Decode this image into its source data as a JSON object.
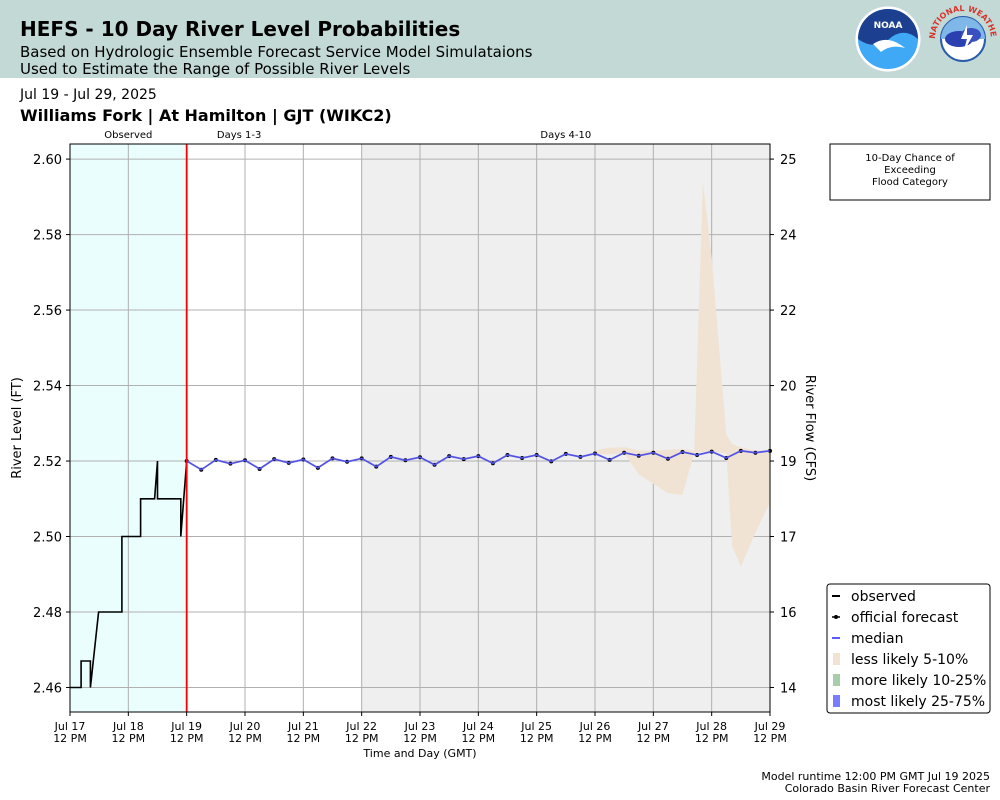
{
  "header": {
    "title": "HEFS - 10 Day River Level Probabilities",
    "subtitle1": "Based on Hydrologic Ensemble Forecast Service Model Simulataions",
    "subtitle2": "Used to Estimate the Range of Possible River Levels",
    "noaa_logo_text": "NOAA",
    "nws_logo_text": "NATIONAL WEATHER SERVICE"
  },
  "date_range": "Jul 19 - Jul 29, 2025",
  "station": "Williams Fork | At Hamilton | GJT (WIKC2)",
  "footer": {
    "runtime": "Model runtime 12:00 PM GMT Jul 19 2025",
    "center": "Colorado Basin River Forecast Center"
  },
  "colors": {
    "header_bg": "#c2d9d6",
    "observed_bg": "#ebfefe",
    "days4_10_bg": "#efefef",
    "observed_line": "#000000",
    "forecast_start_line": "#ff0000",
    "median": "#5a5aff",
    "less_likely": "#f1e3d3",
    "more_likely": "#a9cca9",
    "most_likely": "#7b7bff"
  },
  "chart_data": {
    "type": "line",
    "xlabel": "Time and Day (GMT)",
    "ylabel": "River Level (FT)",
    "y2label": "River Flow (CFS)",
    "xlim": [
      17.5,
      29.5
    ],
    "ylim": [
      2.4535,
      2.604
    ],
    "grid": true,
    "legend_position": "lower-right",
    "period_labels": [
      {
        "label": "Observed",
        "from": 17.5,
        "to": 19.5
      },
      {
        "label": "Days 1-3",
        "from": 19.5,
        "to": 22.5
      },
      {
        "label": "Days 4-10",
        "from": 22.5,
        "to": 29.5
      }
    ],
    "flood_box_text": [
      "10-Day Chance of",
      "Exceeding",
      "Flood Category"
    ],
    "x_ticks": [
      {
        "v": 17.5,
        "l1": "Jul 17",
        "l2": "12 PM"
      },
      {
        "v": 18.5,
        "l1": "Jul 18",
        "l2": "12 PM"
      },
      {
        "v": 19.5,
        "l1": "Jul 19",
        "l2": "12 PM"
      },
      {
        "v": 20.5,
        "l1": "Jul 20",
        "l2": "12 PM"
      },
      {
        "v": 21.5,
        "l1": "Jul 21",
        "l2": "12 PM"
      },
      {
        "v": 22.5,
        "l1": "Jul 22",
        "l2": "12 PM"
      },
      {
        "v": 23.5,
        "l1": "Jul 23",
        "l2": "12 PM"
      },
      {
        "v": 24.5,
        "l1": "Jul 24",
        "l2": "12 PM"
      },
      {
        "v": 25.5,
        "l1": "Jul 25",
        "l2": "12 PM"
      },
      {
        "v": 26.5,
        "l1": "Jul 26",
        "l2": "12 PM"
      },
      {
        "v": 27.5,
        "l1": "Jul 27",
        "l2": "12 PM"
      },
      {
        "v": 28.5,
        "l1": "Jul 28",
        "l2": "12 PM"
      },
      {
        "v": 29.5,
        "l1": "Jul 29",
        "l2": "12 PM"
      }
    ],
    "y_ticks": [
      {
        "v": 2.46,
        "l": "2.46"
      },
      {
        "v": 2.48,
        "l": "2.48"
      },
      {
        "v": 2.5,
        "l": "2.50"
      },
      {
        "v": 2.52,
        "l": "2.52"
      },
      {
        "v": 2.54,
        "l": "2.54"
      },
      {
        "v": 2.56,
        "l": "2.56"
      },
      {
        "v": 2.58,
        "l": "2.58"
      },
      {
        "v": 2.6,
        "l": "2.60"
      }
    ],
    "y2_ticks": [
      {
        "v": 2.46,
        "l": "14"
      },
      {
        "v": 2.48,
        "l": "16"
      },
      {
        "v": 2.5,
        "l": "17"
      },
      {
        "v": 2.52,
        "l": "19"
      },
      {
        "v": 2.54,
        "l": "20"
      },
      {
        "v": 2.56,
        "l": "22"
      },
      {
        "v": 2.58,
        "l": "24"
      },
      {
        "v": 2.6,
        "l": "25"
      }
    ],
    "forecast_start": 19.5,
    "series": [
      {
        "name": "observed",
        "x": [
          17.5,
          17.69,
          17.69,
          17.69,
          17.85,
          17.85,
          17.85,
          17.99,
          18.39,
          18.39,
          18.44,
          18.71,
          18.71,
          18.95,
          18.95,
          19.0,
          19.0,
          19.2,
          19.4,
          19.4,
          19.5
        ],
        "y": [
          2.46,
          2.46,
          2.467,
          2.467,
          2.467,
          2.46,
          2.46,
          2.48,
          2.48,
          2.5,
          2.5,
          2.5,
          2.51,
          2.51,
          2.51,
          2.52,
          2.51,
          2.51,
          2.51,
          2.5,
          2.52
        ]
      },
      {
        "name": "official forecast",
        "x": [
          19.5,
          19.75,
          20.0,
          20.25,
          20.5,
          20.75,
          21.0,
          21.25,
          21.5,
          21.75,
          22.0,
          22.25,
          22.5,
          22.75,
          23.0,
          23.25,
          23.5,
          23.75,
          24.0,
          24.25,
          24.5,
          24.75,
          25.0,
          25.25,
          25.5,
          25.75,
          26.0,
          26.25,
          26.5,
          26.75,
          27.0,
          27.25,
          27.5,
          27.75,
          28.0,
          28.25,
          28.5,
          28.75,
          29.0,
          29.25,
          29.5
        ],
        "y": [
          2.52,
          2.5177,
          2.5203,
          2.5193,
          2.5202,
          2.5179,
          2.5205,
          2.5195,
          2.5204,
          2.5182,
          2.5207,
          2.5198,
          2.5207,
          2.5185,
          2.5211,
          2.5202,
          2.521,
          2.519,
          2.5213,
          2.5205,
          2.5213,
          2.5194,
          2.5216,
          2.5208,
          2.5216,
          2.5199,
          2.5219,
          2.5211,
          2.522,
          2.5203,
          2.5222,
          2.5214,
          2.5222,
          2.5206,
          2.5224,
          2.5216,
          2.5225,
          2.5208,
          2.5227,
          2.5222,
          2.5227
        ]
      },
      {
        "name": "median",
        "x": [
          19.5,
          19.75,
          20.0,
          20.25,
          20.5,
          20.75,
          21.0,
          21.25,
          21.5,
          21.75,
          22.0,
          22.25,
          22.5,
          22.75,
          23.0,
          23.25,
          23.5,
          23.75,
          24.0,
          24.25,
          24.5,
          24.75,
          25.0,
          25.25,
          25.5,
          25.75,
          26.0,
          26.25,
          26.5,
          26.75,
          27.0,
          27.25,
          27.5,
          27.75,
          28.0,
          28.25,
          28.5,
          28.75,
          29.0,
          29.25,
          29.5
        ],
        "y": [
          2.52,
          2.5177,
          2.5203,
          2.5193,
          2.5202,
          2.5179,
          2.5205,
          2.5195,
          2.5204,
          2.5182,
          2.5207,
          2.5198,
          2.5207,
          2.5185,
          2.5211,
          2.5202,
          2.521,
          2.519,
          2.5213,
          2.5205,
          2.5213,
          2.5194,
          2.5216,
          2.5208,
          2.5216,
          2.5199,
          2.5219,
          2.5211,
          2.522,
          2.5203,
          2.5222,
          2.5214,
          2.5222,
          2.5206,
          2.5224,
          2.5216,
          2.5225,
          2.5208,
          2.5227,
          2.5222,
          2.5227
        ]
      }
    ],
    "bands": [
      {
        "name": "less likely 5-10%",
        "x": [
          26.5,
          26.6,
          26.75,
          27.0,
          27.25,
          27.5,
          27.75,
          28.0,
          28.2,
          28.35,
          28.5,
          28.75,
          28.85,
          29.0,
          29.25,
          29.5
        ],
        "upper": [
          2.5227,
          2.5232,
          2.5235,
          2.5237,
          2.5228,
          2.5228,
          2.523,
          2.5232,
          2.5227,
          2.594,
          2.574,
          2.527,
          2.5245,
          2.5236,
          2.5228,
          2.5227
        ],
        "lower": [
          2.522,
          2.5218,
          2.5218,
          2.522,
          2.5165,
          2.514,
          2.5115,
          2.511,
          2.5222,
          2.5224,
          2.5225,
          2.522,
          2.4975,
          2.492,
          2.501,
          2.509
        ]
      }
    ],
    "legend": [
      "observed",
      "official forecast",
      "median",
      "less likely 5-10%",
      "more likely 10-25%",
      "most likely 25-75%"
    ]
  }
}
